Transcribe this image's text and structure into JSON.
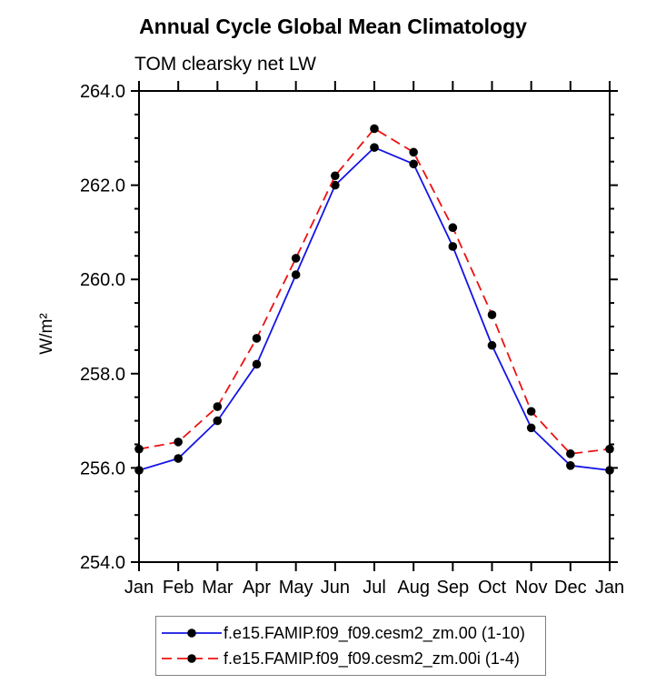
{
  "chart_data": {
    "type": "line",
    "title": "Annual Cycle Global Mean Climatology",
    "subtitle": "TOM clearsky net LW",
    "ylabel": "W/m²",
    "xlabel": "",
    "ylim": [
      254.0,
      264.0
    ],
    "y_major_step": 2.0,
    "y_minor_step": 0.5,
    "y_tick_labels": [
      "264.0",
      "262.0",
      "260.0",
      "258.0",
      "256.0",
      "254.0"
    ],
    "categories": [
      "Jan",
      "Feb",
      "Mar",
      "Apr",
      "May",
      "Jun",
      "Jul",
      "Aug",
      "Sep",
      "Oct",
      "Nov",
      "Dec",
      "Jan"
    ],
    "grid": false,
    "legend_position": "bottom",
    "marker": "filled-circle",
    "marker_color": "#000000",
    "series": [
      {
        "name": "f.e15.FAMIP.f09_f09.cesm2_zm.00 (1-10)",
        "color": "#1414e6",
        "style": "solid",
        "values": [
          255.95,
          256.2,
          257.0,
          258.2,
          260.1,
          262.0,
          262.8,
          262.45,
          260.7,
          258.6,
          256.85,
          256.05,
          255.95
        ]
      },
      {
        "name": "f.e15.FAMIP.f09_f09.cesm2_zm.00i (1-4)",
        "color": "#ee1111",
        "style": "dashed",
        "values": [
          256.4,
          256.55,
          257.3,
          258.75,
          260.45,
          262.2,
          263.2,
          262.7,
          261.1,
          259.25,
          257.2,
          256.3,
          256.4
        ]
      }
    ]
  }
}
